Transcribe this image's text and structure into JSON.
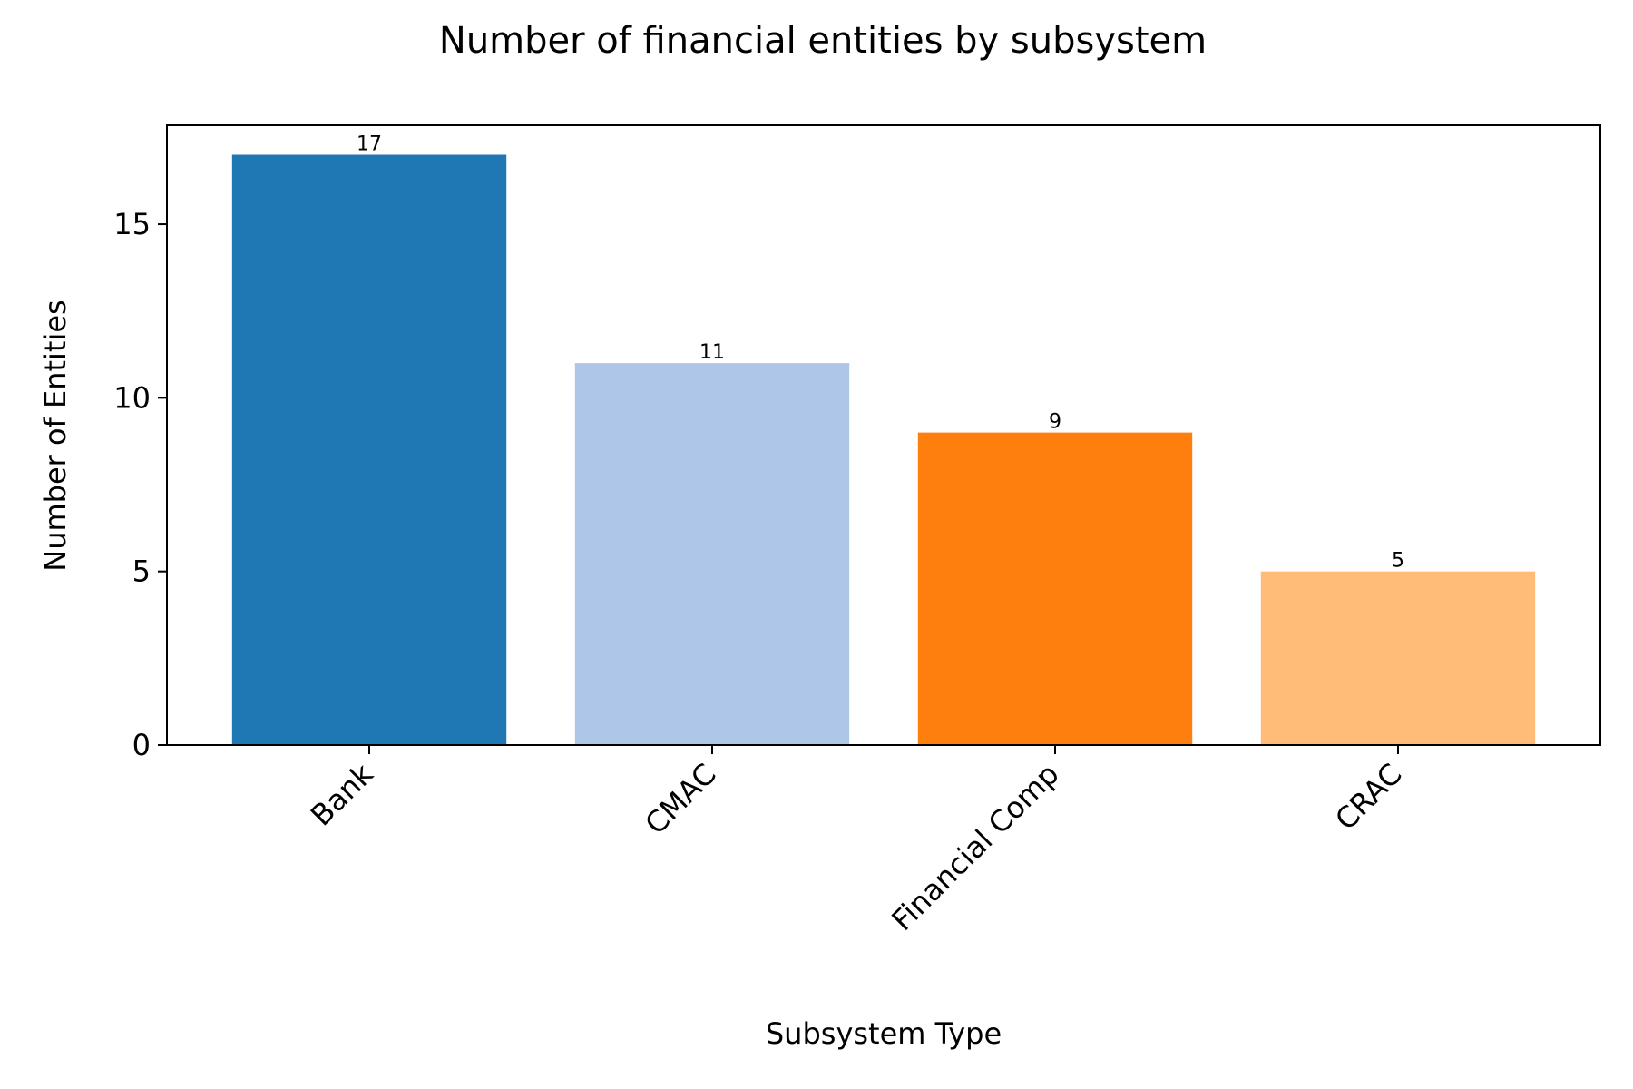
{
  "chart_data": {
    "type": "bar",
    "title": "Number of financial entities by subsystem",
    "xlabel": "Subsystem Type",
    "ylabel": "Number of Entities",
    "categories": [
      "Bank",
      "CMAC",
      "Financial Comp",
      "CRAC"
    ],
    "values": [
      17,
      11,
      9,
      5
    ],
    "data_labels": [
      "17",
      "11",
      "9",
      "5"
    ],
    "colors": [
      "#1f77b4",
      "#aec7e8",
      "#ff7f0e",
      "#ffbb78"
    ],
    "ylim": [
      0,
      17.85
    ],
    "yticks": [
      0,
      5,
      10,
      15
    ],
    "ytick_labels": [
      "0",
      "5",
      "10",
      "15"
    ],
    "grid": false,
    "xtick_rotation_deg": 45
  }
}
